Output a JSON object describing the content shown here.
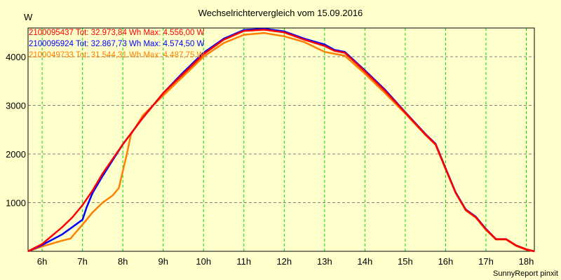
{
  "chart_data": {
    "type": "line",
    "title": "Wechselrichtervergleich vom 15.09.2016",
    "ylabel": "W",
    "xlabel": "",
    "xlim": [
      5.65,
      18.2
    ],
    "ylim": [
      0,
      4590
    ],
    "x_ticks": [
      6,
      7,
      8,
      9,
      10,
      11,
      12,
      13,
      14,
      15,
      16,
      17,
      18
    ],
    "x_tick_labels": [
      "6h",
      "7h",
      "8h",
      "9h",
      "10h",
      "11h",
      "12h",
      "13h",
      "14h",
      "15h",
      "16h",
      "17h",
      "18h"
    ],
    "y_ticks": [
      1000,
      2000,
      3000,
      4000
    ],
    "y_tick_labels": [
      "1000",
      "2000",
      "3000",
      "4000"
    ],
    "grid": true,
    "legend_placement": "top-left",
    "series": [
      {
        "name": "2100095437",
        "legend": "2100095437 Tot: 32.973,84 Wh Max: 4.556,00 W",
        "color": "#ff0000",
        "points": [
          [
            5.65,
            0
          ],
          [
            6.0,
            150
          ],
          [
            6.5,
            500
          ],
          [
            6.75,
            700
          ],
          [
            7.0,
            950
          ],
          [
            7.25,
            1250
          ],
          [
            7.5,
            1600
          ],
          [
            8.0,
            2200
          ],
          [
            8.5,
            2750
          ],
          [
            9.0,
            3250
          ],
          [
            9.5,
            3650
          ],
          [
            10.0,
            4050
          ],
          [
            10.5,
            4350
          ],
          [
            11.0,
            4530
          ],
          [
            11.5,
            4556
          ],
          [
            12.0,
            4500
          ],
          [
            12.5,
            4350
          ],
          [
            13.0,
            4220
          ],
          [
            13.25,
            4120
          ],
          [
            13.5,
            4080
          ],
          [
            14.0,
            3700
          ],
          [
            14.5,
            3300
          ],
          [
            15.0,
            2850
          ],
          [
            15.5,
            2400
          ],
          [
            15.75,
            2200
          ],
          [
            16.0,
            1700
          ],
          [
            16.25,
            1200
          ],
          [
            16.5,
            850
          ],
          [
            16.75,
            700
          ],
          [
            17.0,
            450
          ],
          [
            17.25,
            250
          ],
          [
            17.5,
            250
          ],
          [
            17.75,
            120
          ],
          [
            18.0,
            40
          ],
          [
            18.2,
            0
          ]
        ]
      },
      {
        "name": "2100095924",
        "legend": "2100095924 Tot: 32.867,73 Wh Max: 4.574,50 W",
        "color": "#0000ff",
        "points": [
          [
            5.65,
            0
          ],
          [
            6.0,
            130
          ],
          [
            6.5,
            350
          ],
          [
            6.75,
            500
          ],
          [
            7.0,
            650
          ],
          [
            7.1,
            900
          ],
          [
            7.25,
            1200
          ],
          [
            7.5,
            1550
          ],
          [
            8.0,
            2200
          ],
          [
            8.5,
            2750
          ],
          [
            9.0,
            3250
          ],
          [
            9.5,
            3680
          ],
          [
            10.0,
            4080
          ],
          [
            10.5,
            4370
          ],
          [
            11.0,
            4550
          ],
          [
            11.5,
            4574
          ],
          [
            12.0,
            4520
          ],
          [
            12.5,
            4370
          ],
          [
            13.0,
            4250
          ],
          [
            13.25,
            4140
          ],
          [
            13.5,
            4100
          ],
          [
            14.0,
            3720
          ],
          [
            14.5,
            3320
          ],
          [
            15.0,
            2860
          ],
          [
            15.5,
            2410
          ],
          [
            15.75,
            2210
          ],
          [
            16.0,
            1710
          ],
          [
            16.25,
            1210
          ],
          [
            16.5,
            860
          ],
          [
            16.75,
            710
          ],
          [
            17.0,
            460
          ],
          [
            17.25,
            250
          ],
          [
            17.5,
            250
          ],
          [
            17.75,
            120
          ],
          [
            18.0,
            40
          ],
          [
            18.2,
            0
          ]
        ]
      },
      {
        "name": "2100049733",
        "legend": "2100049733 Tot: 31.544,31 Wh Max: 4.487,75 W",
        "color": "#ff8000",
        "points": [
          [
            5.65,
            0
          ],
          [
            6.0,
            100
          ],
          [
            6.5,
            220
          ],
          [
            6.7,
            260
          ],
          [
            7.0,
            550
          ],
          [
            7.25,
            800
          ],
          [
            7.5,
            1000
          ],
          [
            7.75,
            1150
          ],
          [
            7.9,
            1300
          ],
          [
            8.1,
            2000
          ],
          [
            8.2,
            2400
          ],
          [
            8.5,
            2800
          ],
          [
            9.0,
            3200
          ],
          [
            9.5,
            3600
          ],
          [
            10.0,
            4000
          ],
          [
            10.5,
            4280
          ],
          [
            11.0,
            4450
          ],
          [
            11.5,
            4488
          ],
          [
            12.0,
            4420
          ],
          [
            12.5,
            4300
          ],
          [
            13.0,
            4100
          ],
          [
            13.5,
            4020
          ],
          [
            14.0,
            3650
          ],
          [
            14.5,
            3250
          ],
          [
            15.0,
            2830
          ],
          [
            15.5,
            2390
          ],
          [
            15.75,
            2190
          ],
          [
            16.0,
            1690
          ],
          [
            16.25,
            1200
          ],
          [
            16.5,
            840
          ],
          [
            16.75,
            690
          ],
          [
            17.0,
            440
          ],
          [
            17.25,
            240
          ],
          [
            17.5,
            240
          ],
          [
            17.75,
            110
          ],
          [
            18.0,
            30
          ],
          [
            18.2,
            0
          ]
        ]
      }
    ]
  },
  "credit": "SunnyReport pinxit"
}
